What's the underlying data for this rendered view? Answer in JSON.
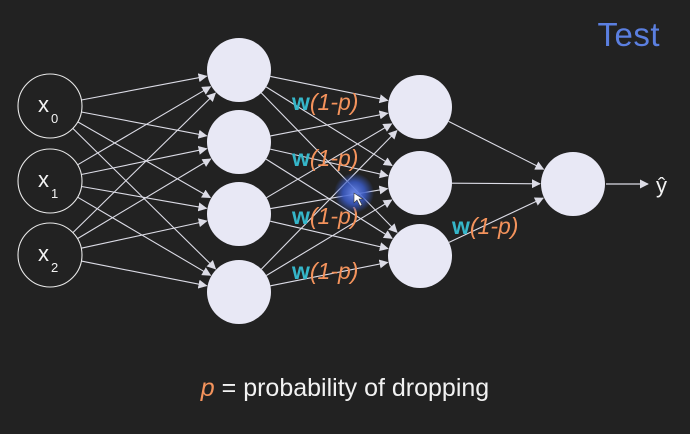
{
  "corner_label": "Test",
  "input_nodes": [
    {
      "base": "x",
      "sub": "0"
    },
    {
      "base": "x",
      "sub": "1"
    },
    {
      "base": "x",
      "sub": "2"
    }
  ],
  "weight_label": {
    "w": "w",
    "scale": "(1-p)"
  },
  "output_label": "ŷ",
  "footer": {
    "var": "p",
    "text": " = probability of dropping"
  },
  "colors": {
    "background": "#222222",
    "neuron": "#E8E8F5",
    "edge": "#DCDCE6",
    "weight_w": "#35B6C9",
    "weight_scale": "#F4935C",
    "corner_label": "#5B7FE0",
    "cursor_glow": "#3A5BC7"
  }
}
